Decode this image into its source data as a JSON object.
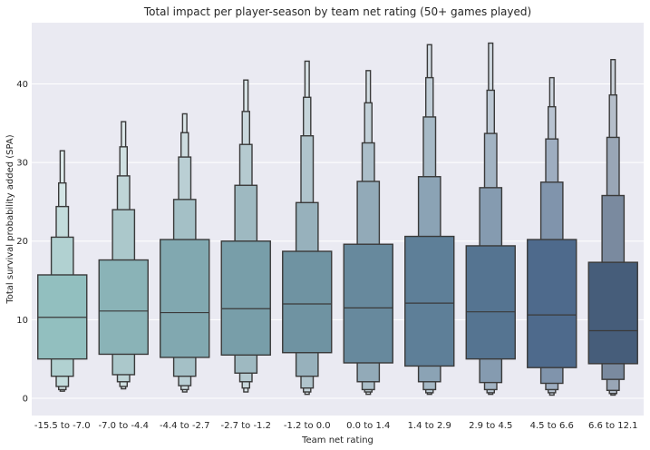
{
  "chart_data": {
    "type": "boxen",
    "title": "Total impact per player-season by team net rating (50+ games played)",
    "xlabel": "Team net rating",
    "ylabel": "Total survival probability added (SPA)",
    "ylim": [
      -2.2,
      47.8
    ],
    "yticks": [
      0,
      10,
      20,
      30,
      40
    ],
    "grid": true,
    "background": "#eaeaf2",
    "categories": [
      "-15.5 to -7.0",
      "-7.0 to -4.4",
      "-4.4 to -2.7",
      "-2.7 to -1.2",
      "-1.2 to 0.0",
      "0.0 to 1.4",
      "1.4 to 2.9",
      "2.9 to 4.5",
      "4.5 to 6.6",
      "6.6 to 12.1"
    ],
    "colors": [
      "#92bfbf",
      "#8ab3b7",
      "#81a8b0",
      "#789ea9",
      "#6f93a2",
      "#67899d",
      "#5e7f98",
      "#557491",
      "#4e6a8c",
      "#465d7a"
    ],
    "boxes": [
      {
        "median": 10.3,
        "levels": [
          [
            5.0,
            15.7
          ],
          [
            2.8,
            20.5
          ],
          [
            1.5,
            24.4
          ],
          [
            1.1,
            27.4
          ],
          [
            0.9,
            31.5
          ]
        ]
      },
      {
        "median": 11.1,
        "levels": [
          [
            5.6,
            17.6
          ],
          [
            3.0,
            24.0
          ],
          [
            2.1,
            28.3
          ],
          [
            1.5,
            32.0
          ],
          [
            1.2,
            35.2
          ]
        ]
      },
      {
        "median": 10.9,
        "levels": [
          [
            5.2,
            20.2
          ],
          [
            2.8,
            25.3
          ],
          [
            1.6,
            30.7
          ],
          [
            1.1,
            33.8
          ],
          [
            0.8,
            36.2
          ]
        ]
      },
      {
        "median": 11.4,
        "levels": [
          [
            5.5,
            20.0
          ],
          [
            3.2,
            27.1
          ],
          [
            2.1,
            32.3
          ],
          [
            1.3,
            36.5
          ],
          [
            0.8,
            40.5
          ]
        ]
      },
      {
        "median": 12.0,
        "levels": [
          [
            5.8,
            18.7
          ],
          [
            2.8,
            24.9
          ],
          [
            1.3,
            33.4
          ],
          [
            0.8,
            38.3
          ],
          [
            0.5,
            42.9
          ]
        ]
      },
      {
        "median": 11.5,
        "levels": [
          [
            4.5,
            19.6
          ],
          [
            2.1,
            27.6
          ],
          [
            1.1,
            32.5
          ],
          [
            0.8,
            37.6
          ],
          [
            0.5,
            41.7
          ]
        ]
      },
      {
        "median": 12.1,
        "levels": [
          [
            4.1,
            20.6
          ],
          [
            2.1,
            28.2
          ],
          [
            1.1,
            35.8
          ],
          [
            0.7,
            40.8
          ],
          [
            0.5,
            45.0
          ]
        ]
      },
      {
        "median": 11.0,
        "levels": [
          [
            5.0,
            19.4
          ],
          [
            2.0,
            26.8
          ],
          [
            1.1,
            33.7
          ],
          [
            0.7,
            39.2
          ],
          [
            0.5,
            45.2
          ]
        ]
      },
      {
        "median": 10.6,
        "levels": [
          [
            3.9,
            20.2
          ],
          [
            1.9,
            27.5
          ],
          [
            1.1,
            33.0
          ],
          [
            0.7,
            37.1
          ],
          [
            0.4,
            40.8
          ]
        ]
      },
      {
        "median": 8.6,
        "levels": [
          [
            4.4,
            17.3
          ],
          [
            2.4,
            25.8
          ],
          [
            1.0,
            33.2
          ],
          [
            0.6,
            38.6
          ],
          [
            0.4,
            43.1
          ]
        ]
      }
    ]
  }
}
